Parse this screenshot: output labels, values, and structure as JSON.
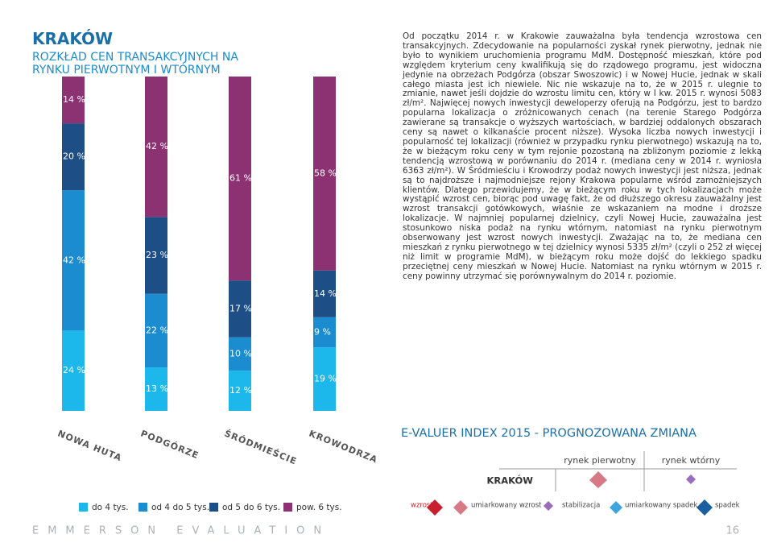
{
  "header": {
    "title": "KRAKÓW",
    "subtitle": "ROZKŁAD CEN TRANSAKCYJNYCH NA RYNKU PIERWOTNYM I WTÓRNYM"
  },
  "chart_data": {
    "type": "stacked_bar",
    "categories": [
      "NOWA HUTA",
      "PODGÓRZE",
      "ŚRÓDMIEŚCIE",
      "KROWODRZA"
    ],
    "ylim": [
      0,
      100
    ],
    "series": [
      {
        "name": "do 4 tys.",
        "color": "#1cb8ec",
        "values": [
          24,
          13,
          12,
          19
        ],
        "value_labels": [
          "24 %",
          "13 %",
          "12 %",
          "19 %"
        ]
      },
      {
        "name": "od 4 do 5 tys.",
        "color": "#1a8ccf",
        "values": [
          42,
          22,
          10,
          9
        ],
        "value_labels": [
          "42 %",
          "22 %",
          "10 %",
          "9 %"
        ]
      },
      {
        "name": "od 5 do 6 tys.",
        "color": "#1d4f86",
        "values": [
          20,
          23,
          17,
          14
        ],
        "value_labels": [
          "20 %",
          "23 %",
          "17 %",
          "14 %"
        ]
      },
      {
        "name": "pow. 6 tys.",
        "color": "#8c3272",
        "values": [
          14,
          42,
          61,
          58
        ],
        "value_labels": [
          "14 %",
          "42 %",
          "61 %",
          "58 %"
        ]
      }
    ]
  },
  "body_text": "Od początku 2014 r. w Krakowie zauważalna była tendencja wzrostowa cen transakcyjnych. Zdecydowanie na popularności zyskał rynek pierwotny, jednak nie było to wynikiem uruchomienia programu MdM. Dostępność mieszkań, które pod względem kryterium ceny kwalifikują się do rządowego programu, jest widoczna jedynie na obrzeżach Podgórza (obszar Swoszowic) i w Nowej Hucie, jednak w skali całego miasta jest ich niewiele. Nic nie wskazuje na to, że w 2015 r. ulegnie to zmianie, nawet jeśli dojdzie do wzrostu limitu cen, który w I kw. 2015 r. wynosi 5083 zł/m². Najwięcej nowych inwestycji deweloperzy oferują na Podgórzu, jest to bardzo popularna lokalizacja o zróżnicowanych cenach (na terenie Starego Podgórza zawierane są transakcje o wyższych wartościach, w bardziej oddalonych obszarach ceny są nawet o kilkanaście procent niższe). Wysoka liczba nowych inwestycji i popularność tej lokalizacji (również w przypadku rynku pierwotnego) wskazują na to, że w bieżącym roku ceny w tym rejonie pozostaną na zbliżonym poziomie z lekką tendencją wzrostową w porównaniu do 2014 r. (mediana ceny w 2014 r. wyniosła 6363 zł/m²). W Śródmieściu i Krowodrzy podaż nowych inwestycji jest niższa, jednak są to najdroższe i najmodniejsze rejony Krakowa popularne wśród zamożniejszych klientów. Dlatego przewidujemy, że w bieżącym roku w tych lokalizacjach może wystąpić wzrost cen, biorąc pod uwagę fakt, że od dłuższego okresu zauważalny jest wzrost transakcji gotówkowych, właśnie ze wskazaniem na modne i droższe lokalizacje. W najmniej popularnej dzielnicy, czyli Nowej Hucie, zauważalna jest stosunkowo niska podaż na rynku wtórnym, natomiast na rynku pierwotnym obserwowany jest wzrost nowych inwestycji. Zważając na to, że mediana cen mieszkań z rynku pierwotnego w tej dzielnicy wynosi 5335 zł/m² (czyli o 252 zł więcej niż limit w programie MdM), w bieżącym roku może dojść do lekkiego spadku przeciętnej ceny mieszkań w Nowej Hucie. Natomiast na rynku wtórnym w 2015 r. ceny powinny utrzymać się porównywalnym do 2014 r. poziomie.",
  "index": {
    "title": "E-VALUER INDEX 2015 - PROGNOZOWANA ZMIANA",
    "columns": [
      "rynek pierwotny",
      "rynek wtórny"
    ],
    "row": "KRAKÓW",
    "legend": [
      "wzrost",
      "umiarkowany wzrost",
      "stabilizacja",
      "umiarkowany spadek",
      "spadek"
    ]
  },
  "footer": {
    "brand": "EMMERSON EVALUATION",
    "page": "16"
  }
}
